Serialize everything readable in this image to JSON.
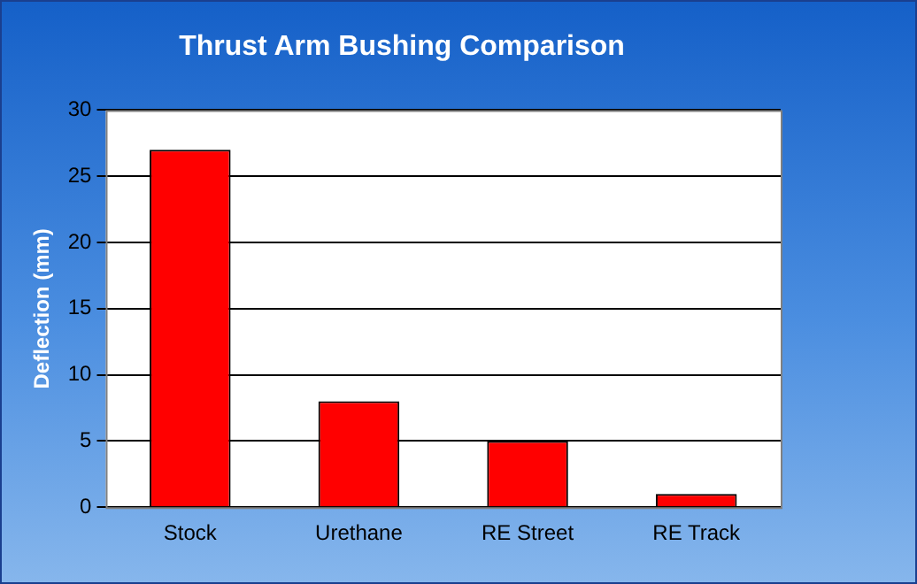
{
  "chart_data": {
    "type": "bar",
    "title": "Thrust Arm Bushing Comparison",
    "ylabel": "Deflection (mm)",
    "categories": [
      "Stock",
      "Urethane",
      "RE Street",
      "RE Track"
    ],
    "values": [
      27,
      8,
      5,
      1
    ],
    "color": "#ff0000",
    "ylim": [
      0,
      30
    ],
    "yticks": [
      0,
      5,
      10,
      15,
      20,
      25,
      30
    ],
    "grid": "y",
    "legend": false
  }
}
